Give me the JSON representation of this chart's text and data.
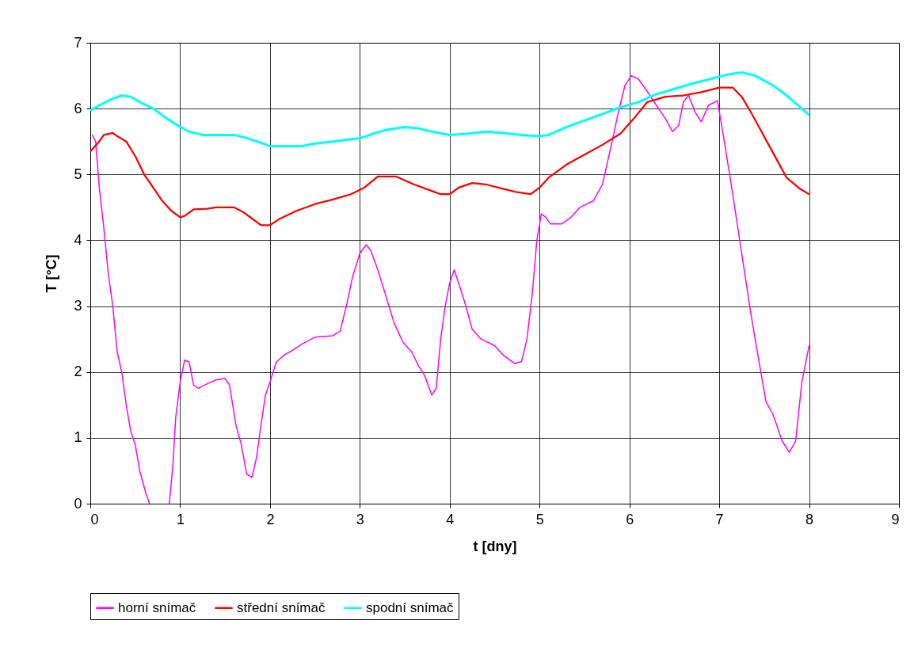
{
  "chart_data": {
    "type": "line",
    "xlabel": "t [dny]",
    "ylabel": "T [°C]",
    "xlim": [
      0,
      9
    ],
    "xticks": [
      0,
      1,
      2,
      3,
      4,
      5,
      6,
      7,
      8,
      9
    ],
    "ylim": [
      0,
      7
    ],
    "yticks": [
      0,
      1,
      2,
      3,
      4,
      5,
      6,
      7
    ],
    "grid": true,
    "legend": "bottom",
    "marker": "none",
    "line_style": "solid",
    "series": [
      {
        "name": "horní snímač",
        "color": "#ff00ff",
        "x": [
          0.02,
          0.06,
          0.1,
          0.15,
          0.2,
          0.25,
          0.3,
          0.35,
          0.4,
          0.45,
          0.5,
          0.55,
          0.62,
          0.66,
          0.76,
          0.88,
          0.92,
          0.95,
          1.0,
          1.05,
          1.1,
          1.15,
          1.2,
          1.3,
          1.4,
          1.5,
          1.55,
          1.62,
          1.68,
          1.74,
          1.8,
          1.85,
          1.9,
          1.95,
          2.0,
          2.07,
          2.15,
          2.25,
          2.35,
          2.5,
          2.7,
          2.78,
          2.85,
          2.92,
          3.0,
          3.07,
          3.12,
          3.2,
          3.28,
          3.38,
          3.48,
          3.58,
          3.65,
          3.72,
          3.8,
          3.85,
          3.9,
          3.95,
          4.0,
          4.05,
          4.1,
          4.18,
          4.25,
          4.35,
          4.5,
          4.6,
          4.72,
          4.8,
          4.86,
          4.92,
          4.97,
          5.02,
          5.07,
          5.12,
          5.25,
          5.35,
          5.45,
          5.6,
          5.7,
          5.8,
          5.87,
          5.95,
          6.02,
          6.1,
          6.18,
          6.3,
          6.4,
          6.48,
          6.55,
          6.6,
          6.66,
          6.73,
          6.8,
          6.88,
          6.98,
          7.02,
          7.08,
          7.15,
          7.25,
          7.35,
          7.45,
          7.52,
          7.6,
          7.7,
          7.78,
          7.85,
          7.92,
          8.0
        ],
        "values": [
          5.6,
          5.5,
          4.8,
          4.2,
          3.5,
          3.0,
          2.3,
          2.0,
          1.5,
          1.1,
          0.9,
          0.5,
          0.15,
          0,
          null,
          0,
          0.6,
          1.3,
          1.85,
          2.18,
          2.15,
          1.8,
          1.75,
          1.82,
          1.88,
          1.9,
          1.8,
          1.2,
          0.9,
          0.45,
          0.4,
          0.7,
          1.2,
          1.65,
          1.85,
          2.15,
          2.25,
          2.33,
          2.42,
          2.53,
          2.55,
          2.62,
          3.0,
          3.45,
          3.8,
          3.93,
          3.85,
          3.55,
          3.2,
          2.75,
          2.45,
          2.3,
          2.1,
          1.95,
          1.65,
          1.75,
          2.5,
          3.0,
          3.35,
          3.55,
          3.35,
          3.0,
          2.65,
          2.5,
          2.4,
          2.25,
          2.13,
          2.16,
          2.5,
          3.2,
          4.0,
          4.4,
          4.35,
          4.25,
          4.25,
          4.35,
          4.5,
          4.6,
          4.85,
          5.45,
          5.9,
          6.35,
          6.5,
          6.45,
          6.3,
          6.05,
          5.85,
          5.65,
          5.75,
          6.1,
          6.2,
          5.95,
          5.8,
          6.05,
          6.12,
          5.8,
          5.3,
          4.7,
          3.8,
          2.9,
          2.1,
          1.55,
          1.35,
          0.95,
          0.78,
          0.95,
          1.85,
          2.4
        ]
      },
      {
        "name": "střední snímač",
        "color": "#ff0000",
        "x": [
          0,
          0.1,
          0.15,
          0.25,
          0.3,
          0.4,
          0.5,
          0.6,
          0.7,
          0.8,
          0.9,
          1.0,
          1.05,
          1.15,
          1.3,
          1.4,
          1.6,
          1.7,
          1.8,
          1.9,
          2.0,
          2.1,
          2.3,
          2.5,
          2.7,
          2.9,
          3.05,
          3.2,
          3.4,
          3.6,
          3.8,
          3.9,
          4.0,
          4.1,
          4.25,
          4.4,
          4.6,
          4.75,
          4.9,
          5.0,
          5.1,
          5.3,
          5.5,
          5.7,
          5.9,
          6.05,
          6.2,
          6.4,
          6.6,
          6.8,
          7.0,
          7.15,
          7.25,
          7.35,
          7.45,
          7.55,
          7.65,
          7.75,
          7.9,
          8.0
        ],
        "values": [
          5.35,
          5.5,
          5.6,
          5.63,
          5.58,
          5.5,
          5.28,
          5.0,
          4.8,
          4.6,
          4.45,
          4.35,
          4.37,
          4.47,
          4.48,
          4.5,
          4.5,
          4.43,
          4.33,
          4.23,
          4.23,
          4.32,
          4.45,
          4.55,
          4.62,
          4.7,
          4.8,
          4.97,
          4.97,
          4.85,
          4.75,
          4.7,
          4.7,
          4.8,
          4.87,
          4.85,
          4.78,
          4.73,
          4.7,
          4.8,
          4.95,
          5.15,
          5.3,
          5.45,
          5.62,
          5.85,
          6.1,
          6.18,
          6.2,
          6.25,
          6.32,
          6.32,
          6.18,
          5.95,
          5.7,
          5.45,
          5.2,
          4.95,
          4.78,
          4.7
        ]
      },
      {
        "name": "spodní snímač",
        "color": "#00ffff",
        "x": [
          0,
          0.1,
          0.25,
          0.35,
          0.45,
          0.55,
          0.7,
          0.85,
          1.0,
          1.1,
          1.25,
          1.6,
          1.75,
          1.9,
          2.0,
          2.35,
          2.5,
          2.7,
          3.0,
          3.15,
          3.3,
          3.5,
          3.65,
          3.8,
          4.0,
          4.2,
          4.4,
          4.6,
          4.8,
          5.0,
          5.1,
          5.3,
          5.5,
          5.7,
          5.9,
          6.1,
          6.3,
          6.5,
          6.7,
          6.9,
          7.1,
          7.25,
          7.4,
          7.6,
          7.75,
          7.9,
          8.0
        ],
        "values": [
          5.97,
          6.05,
          6.15,
          6.2,
          6.18,
          6.1,
          6.0,
          5.85,
          5.72,
          5.65,
          5.6,
          5.6,
          5.55,
          5.48,
          5.43,
          5.43,
          5.47,
          5.5,
          5.55,
          5.62,
          5.68,
          5.72,
          5.7,
          5.65,
          5.6,
          5.62,
          5.65,
          5.63,
          5.6,
          5.58,
          5.6,
          5.72,
          5.82,
          5.92,
          6.02,
          6.1,
          6.22,
          6.3,
          6.38,
          6.45,
          6.52,
          6.55,
          6.5,
          6.35,
          6.2,
          6.02,
          5.9
        ]
      }
    ]
  }
}
